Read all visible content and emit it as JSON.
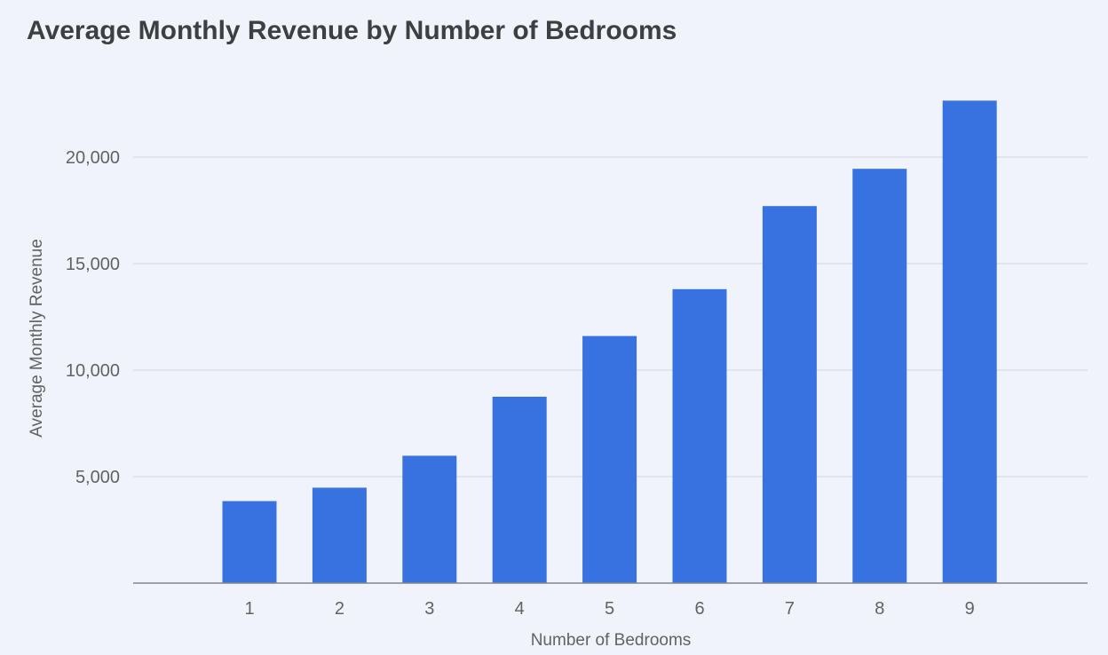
{
  "title": "Average Monthly Revenue by Number of Bedrooms",
  "colors": {
    "bar": "#3871e0",
    "background": "#f0f4fa",
    "grid": "#cfd4dc",
    "text": "#3c4043"
  },
  "chart_data": {
    "type": "bar",
    "title": "Average Monthly Revenue by Number of Bedrooms",
    "xlabel": "Number of Bedrooms",
    "ylabel": "Average Monthly Revenue",
    "categories": [
      "1",
      "2",
      "3",
      "4",
      "5",
      "6",
      "7",
      "8",
      "9"
    ],
    "values": [
      3850,
      4480,
      5980,
      8750,
      11600,
      13800,
      17700,
      19450,
      22650
    ],
    "ylim": [
      0,
      23000
    ],
    "yticks": [
      5000,
      10000,
      15000,
      20000
    ],
    "ytick_labels": [
      "5,000",
      "10,000",
      "15,000",
      "20,000"
    ],
    "grid": true,
    "legend": "none"
  }
}
